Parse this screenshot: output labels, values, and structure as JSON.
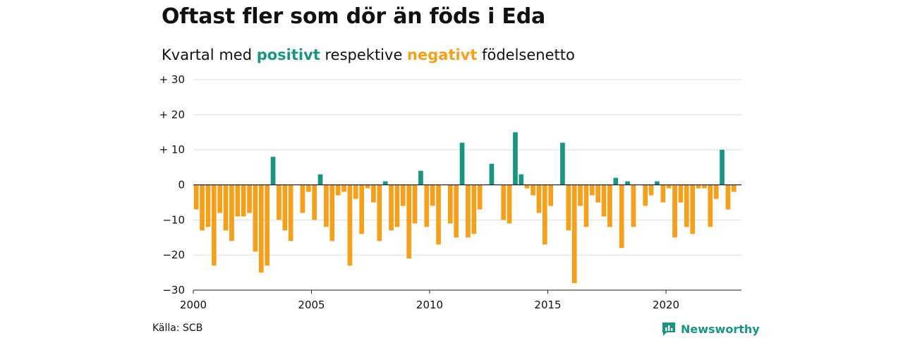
{
  "title": "Oftast fler som dör än föds i Eda",
  "subtitle": {
    "prefix": "Kvartal med ",
    "positive": "positivt",
    "middle": " respektive ",
    "negative": "negativt",
    "suffix": " födelsenetto"
  },
  "source": "Källa: SCB",
  "logo": {
    "text": "Newsworthy",
    "icon": "newsworthy-logo-icon"
  },
  "colors": {
    "positive": "#1a9582",
    "negative": "#f59f1a",
    "grid": "#dddddd",
    "axis": "#222222"
  },
  "chart_data": {
    "type": "bar",
    "x_unit": "quarter",
    "x_start": "2000 Q1",
    "ylim": [
      -30,
      30
    ],
    "yticks": [
      {
        "value": 30,
        "label": "+ 30"
      },
      {
        "value": 20,
        "label": "+ 20"
      },
      {
        "value": 10,
        "label": "+ 10"
      },
      {
        "value": 0,
        "label": "0"
      },
      {
        "value": -10,
        "label": "−10"
      },
      {
        "value": -20,
        "label": "−20"
      },
      {
        "value": -30,
        "label": "−30"
      }
    ],
    "xticks": [
      {
        "value": 2000,
        "label": "2000"
      },
      {
        "value": 2005,
        "label": "2005"
      },
      {
        "value": 2010,
        "label": "2010"
      },
      {
        "value": 2015,
        "label": "2015"
      },
      {
        "value": 2020,
        "label": "2020"
      }
    ],
    "grid": true,
    "values": [
      -7,
      -13,
      -12,
      -23,
      -8,
      -13,
      -16,
      -9,
      -9,
      -8,
      -19,
      -25,
      -23,
      8,
      -10,
      -13,
      -16,
      0,
      -8,
      -2,
      -10,
      3,
      -12,
      -16,
      -3,
      -2,
      -23,
      -4,
      -14,
      -1,
      -5,
      -16,
      1,
      -13,
      -12,
      -6,
      -21,
      -11,
      4,
      -12,
      -6,
      -17,
      0,
      -11,
      -15,
      12,
      -15,
      -14,
      -7,
      0,
      6,
      0,
      -10,
      -11,
      15,
      3,
      -1,
      -3,
      -8,
      -17,
      -6,
      0,
      12,
      -13,
      -28,
      -6,
      -12,
      -3,
      -5,
      -9,
      -12,
      2,
      -18,
      1,
      -12,
      0,
      -6,
      -3,
      1,
      -5,
      -1,
      -15,
      -5,
      -12,
      -14,
      -1,
      -1,
      -12,
      -4,
      10,
      -7,
      -2
    ]
  }
}
